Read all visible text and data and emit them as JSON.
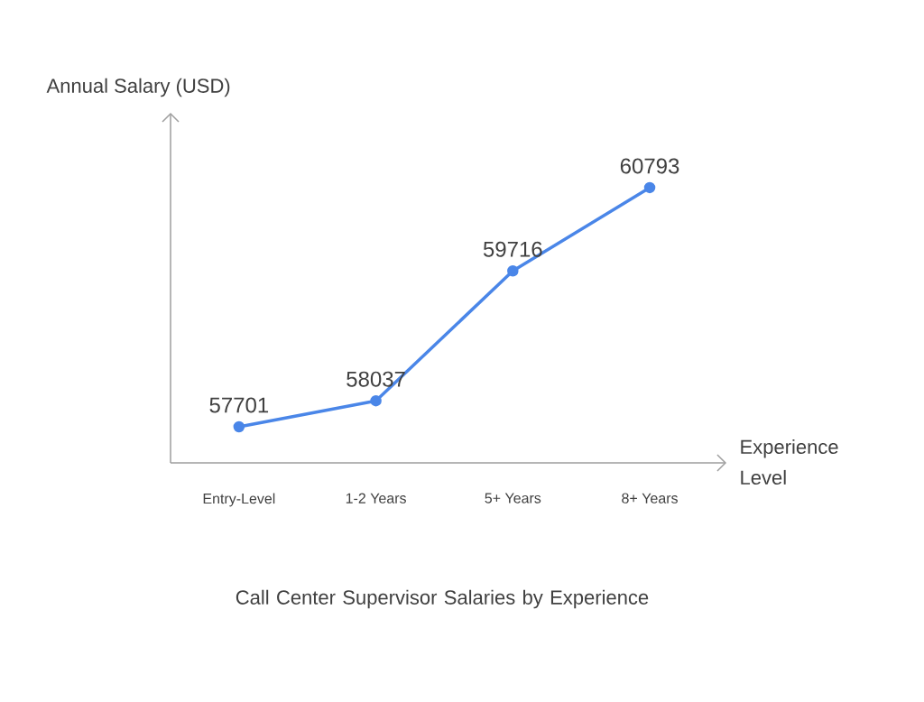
{
  "chart_data": {
    "type": "line",
    "title": "Call Center Supervisor Salaries by Experience",
    "xlabel": "Experience Level",
    "ylabel": "Annual Salary (USD)",
    "categories": [
      "Entry-Level",
      "1-2 Years",
      "5+ Years",
      "8+ Years"
    ],
    "values": [
      57701,
      58037,
      59716,
      60793
    ],
    "color": "#4a86e8",
    "ylim": [
      57234,
      61761
    ],
    "data_labels": true,
    "marker": "circle"
  }
}
